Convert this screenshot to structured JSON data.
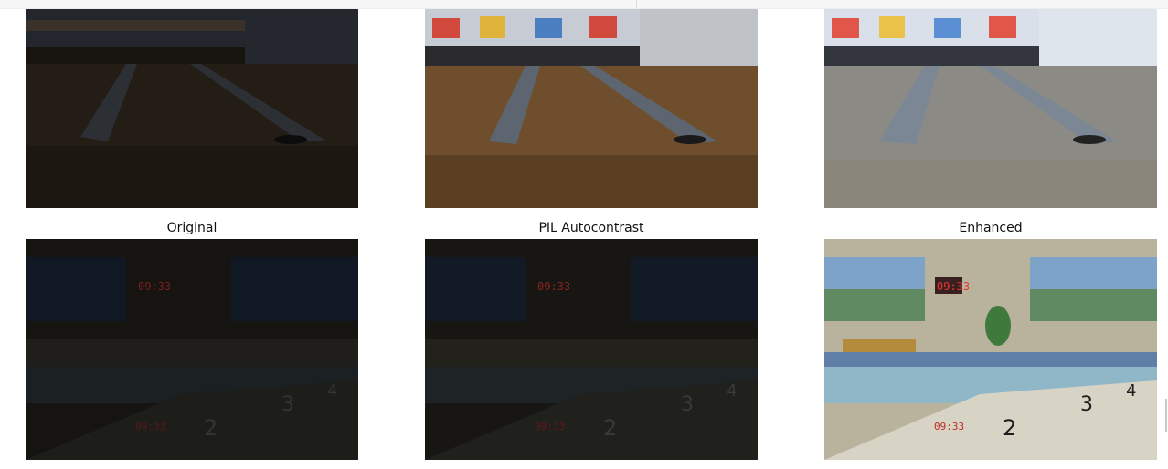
{
  "captions": {
    "original": "Original",
    "autocontrast": "PIL Autocontrast",
    "enhanced": "Enhanced"
  },
  "clock_text": "09:33",
  "lane_numbers": [
    "2",
    "3",
    "4"
  ],
  "colors": {
    "clock_red": "#e6362f",
    "clock_red_dim": "#7a1e1c"
  }
}
